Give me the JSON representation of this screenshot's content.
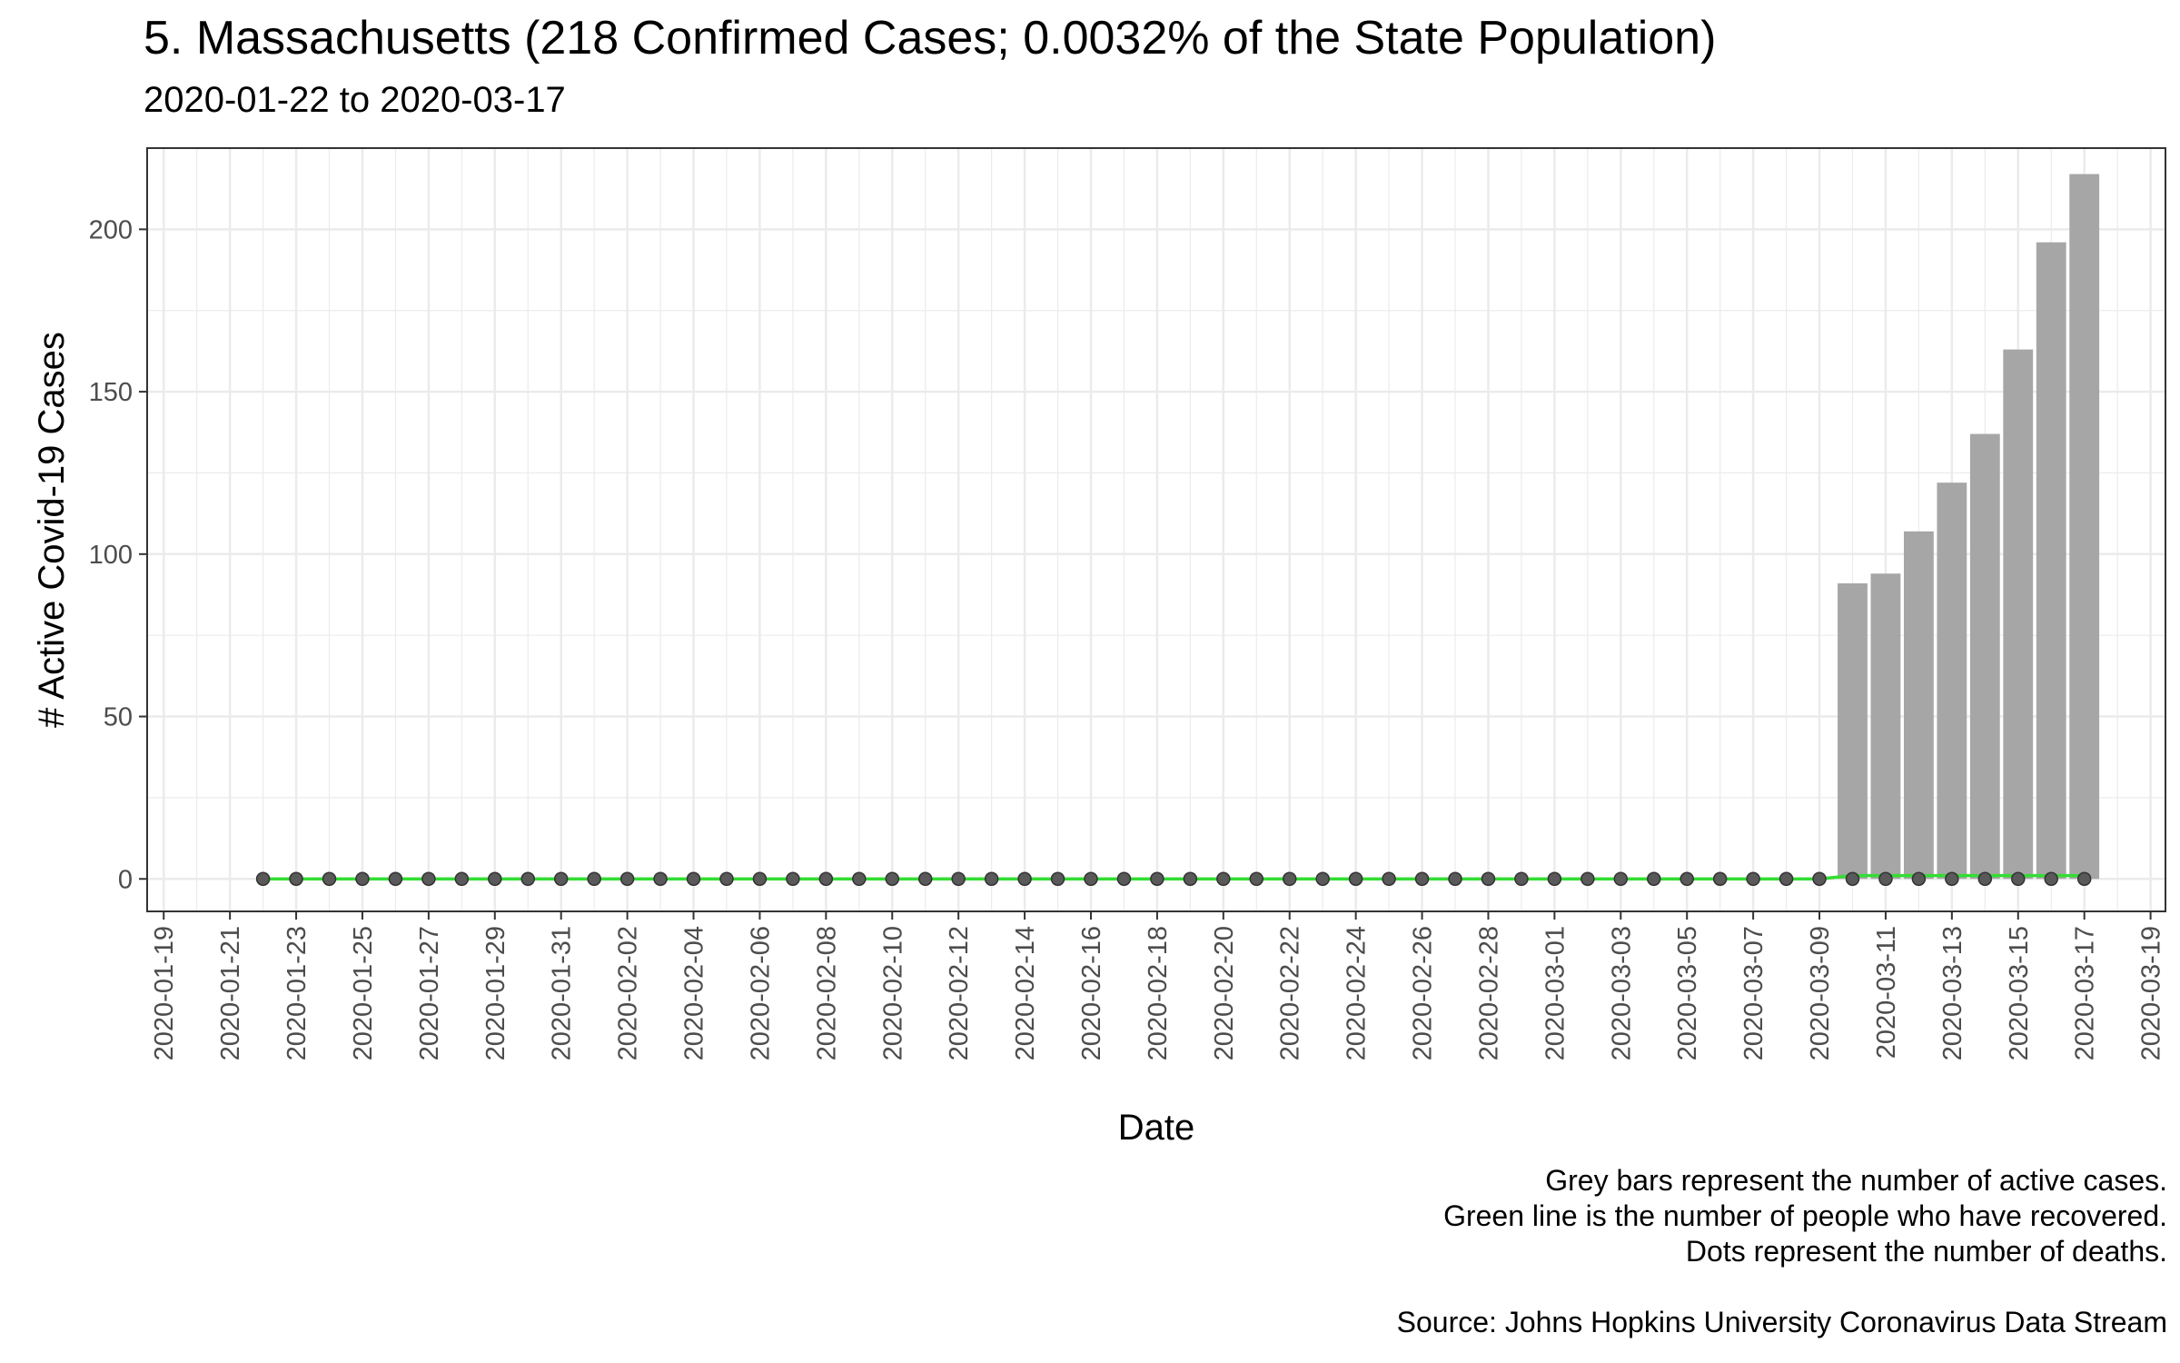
{
  "header": {
    "title": "5. Massachusetts (218 Confirmed Cases; 0.0032% of the State Population)",
    "subtitle": "2020-01-22 to 2020-03-17"
  },
  "caption": {
    "line1": "Grey bars represent the number of active cases.",
    "line2": "Green line is the number of people who have recovered.",
    "line3": "Dots represent the number of deaths.",
    "source": "Source: Johns Hopkins University Coronavirus Data Stream"
  },
  "colors": {
    "bar": "#a6a6a6",
    "recovered_line": "#33dd33",
    "death_dot": "#595959",
    "grid": "#ebebeb",
    "panel_border": "#333333"
  },
  "chart_data": {
    "type": "bar",
    "title": "5. Massachusetts (218 Confirmed Cases; 0.0032% of the State Population)",
    "subtitle": "2020-01-22 to 2020-03-17",
    "xlabel": "Date",
    "ylabel": "# Active Covid-19 Cases",
    "x_range": [
      "2020-01-19",
      "2020-03-19"
    ],
    "ylim": [
      0,
      225
    ],
    "x_ticks": [
      "2020-01-19",
      "2020-01-21",
      "2020-01-23",
      "2020-01-25",
      "2020-01-27",
      "2020-01-29",
      "2020-01-31",
      "2020-02-02",
      "2020-02-04",
      "2020-02-06",
      "2020-02-08",
      "2020-02-10",
      "2020-02-12",
      "2020-02-14",
      "2020-02-16",
      "2020-02-18",
      "2020-02-20",
      "2020-02-22",
      "2020-02-24",
      "2020-02-26",
      "2020-02-28",
      "2020-03-01",
      "2020-03-03",
      "2020-03-05",
      "2020-03-07",
      "2020-03-09",
      "2020-03-11",
      "2020-03-13",
      "2020-03-15",
      "2020-03-17",
      "2020-03-19"
    ],
    "y_ticks": [
      0,
      50,
      100,
      150,
      200
    ],
    "grid": true,
    "series": [
      {
        "type": "bar",
        "x": [
          "2020-03-10",
          "2020-03-11",
          "2020-03-12",
          "2020-03-13",
          "2020-03-14",
          "2020-03-15",
          "2020-03-16",
          "2020-03-17"
        ],
        "values": [
          91,
          94,
          107,
          122,
          137,
          163,
          196,
          217
        ]
      },
      {
        "type": "line",
        "x_start": "2020-01-22",
        "x_end": "2020-03-17",
        "values_by_day": "0 from 2020-01-22 through 2020-03-09, then 1 through 2020-03-17",
        "points": [
          [
            "2020-01-22",
            0
          ],
          [
            "2020-03-09",
            0
          ],
          [
            "2020-03-10",
            1
          ],
          [
            "2020-03-17",
            1
          ]
        ]
      },
      {
        "type": "scatter",
        "x_start": "2020-01-22",
        "x_end": "2020-03-17",
        "value": 0
      }
    ]
  }
}
